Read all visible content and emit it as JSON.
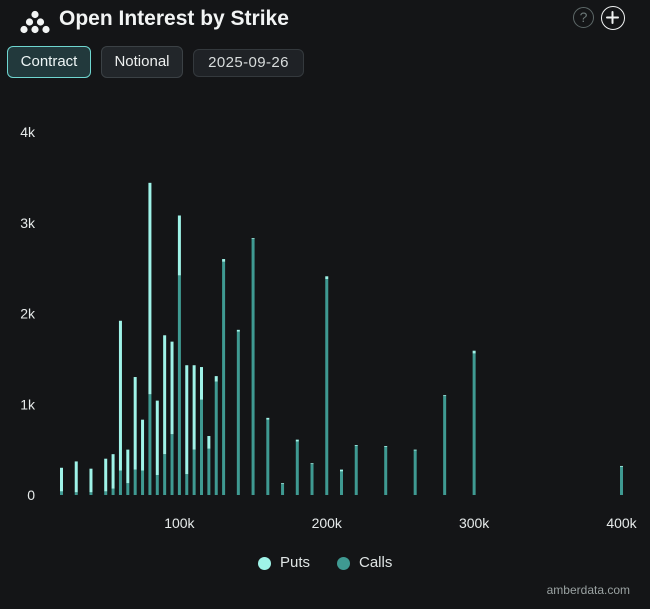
{
  "header": {
    "title": "Open Interest by Strike",
    "help_glyph": "?",
    "help_icon": "help-circle-icon",
    "add_icon": "plus-circle-icon",
    "logo_icon": "amberdata-logo-icon"
  },
  "controls": {
    "contract_label": "Contract",
    "notional_label": "Notional",
    "expiry_label": "2025-09-26",
    "active": "Contract"
  },
  "colors": {
    "background": "#141517",
    "puts": "#9ff3e8",
    "calls": "#3f9a92",
    "tick_text": "#e6eaea"
  },
  "chart_data": {
    "type": "bar",
    "stacked": true,
    "xlim": [
      20000,
      400000
    ],
    "ylim": [
      0,
      4000
    ],
    "x_ticks": [
      {
        "value": 100000,
        "label": "100k"
      },
      {
        "value": 200000,
        "label": "200k"
      },
      {
        "value": 300000,
        "label": "300k"
      },
      {
        "value": 400000,
        "label": "400k"
      }
    ],
    "y_ticks": [
      {
        "value": 0,
        "label": "0"
      },
      {
        "value": 1000,
        "label": "1k"
      },
      {
        "value": 2000,
        "label": "2k"
      },
      {
        "value": 3000,
        "label": "3k"
      },
      {
        "value": 4000,
        "label": "4k"
      }
    ],
    "grid": false,
    "legend_position": "bottom",
    "strikes": [
      20000,
      30000,
      40000,
      50000,
      55000,
      60000,
      65000,
      70000,
      75000,
      80000,
      85000,
      90000,
      95000,
      100000,
      105000,
      110000,
      115000,
      120000,
      125000,
      130000,
      140000,
      150000,
      160000,
      170000,
      180000,
      190000,
      200000,
      210000,
      220000,
      240000,
      260000,
      280000,
      300000,
      400000
    ],
    "series": [
      {
        "name": "Puts",
        "values": [
          260,
          340,
          260,
          360,
          380,
          1650,
          370,
          1020,
          560,
          2330,
          820,
          1310,
          1020,
          660,
          1200,
          930,
          360,
          140,
          60,
          30,
          20,
          10,
          20,
          10,
          20,
          10,
          30,
          20,
          10,
          10,
          10,
          10,
          30,
          10
        ]
      },
      {
        "name": "Calls",
        "values": [
          40,
          30,
          30,
          40,
          70,
          270,
          130,
          280,
          270,
          1110,
          220,
          450,
          670,
          2420,
          230,
          500,
          1050,
          510,
          1250,
          2570,
          1800,
          2820,
          830,
          120,
          590,
          340,
          2380,
          260,
          540,
          530,
          490,
          1090,
          1560,
          310
        ]
      }
    ]
  },
  "legend": {
    "puts_label": "Puts",
    "calls_label": "Calls"
  },
  "watermark": "amberdata.com"
}
